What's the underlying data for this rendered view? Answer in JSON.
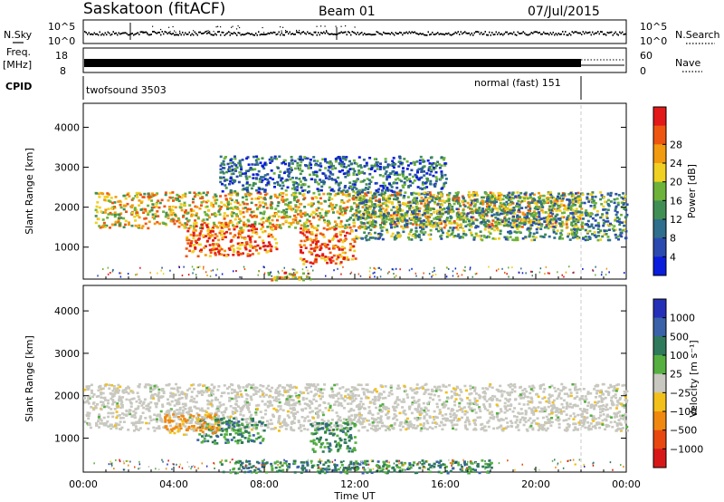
{
  "header": {
    "station": "Saskatoon (fitACF)",
    "beam": "Beam 01",
    "date": "07/Jul/2015"
  },
  "strips": {
    "nsky_label": "N.Sky",
    "nsky_ticks": [
      "10^5",
      "10^0"
    ],
    "nsearch_label": "N.Search",
    "nsearch_ticks": [
      "10^5",
      "10^0"
    ],
    "freq_label": "Freq.",
    "freq_unit": "[MHz]",
    "freq_ticks": [
      "18",
      "8"
    ],
    "nave_label": "Nave",
    "nave_ticks": [
      "60",
      "0"
    ],
    "cpid_label": "CPID",
    "cpid_modes": [
      {
        "text": "twofsound 3503",
        "start_hour": 0
      },
      {
        "text": "normal (fast) 151",
        "start_hour": 22
      }
    ]
  },
  "chart_data": [
    {
      "type": "heatmap",
      "panel": "power",
      "ylabel": "Slant Range [km]",
      "yticks": [
        "1000",
        "2000",
        "3000",
        "4000"
      ],
      "ylim": [
        200,
        4600
      ],
      "xlim": [
        0,
        24
      ],
      "colorbar_label": "Power [dB]",
      "colorbar_ticks": [
        "4",
        "8",
        "12",
        "16",
        "20",
        "24",
        "28"
      ],
      "colors": [
        "#0a1cdc",
        "#2a4ab0",
        "#2f6e8c",
        "#3f8f54",
        "#6db33a",
        "#f0d020",
        "#f29a10",
        "#ee5510",
        "#e31818"
      ],
      "regions": [
        {
          "hours": [
            0.5,
            22
          ],
          "range_km": [
            1500,
            2400
          ],
          "level_db": 18
        },
        {
          "hours": [
            4.5,
            8.5
          ],
          "range_km": [
            800,
            1600
          ],
          "level_db": 27
        },
        {
          "hours": [
            9.5,
            12
          ],
          "range_km": [
            600,
            1500
          ],
          "level_db": 26
        },
        {
          "hours": [
            8,
            10
          ],
          "range_km": [
            200,
            400
          ],
          "level_db": 24
        },
        {
          "hours": [
            12,
            24
          ],
          "range_km": [
            1200,
            2400
          ],
          "level_db": 14
        },
        {
          "hours": [
            6,
            16
          ],
          "range_km": [
            2400,
            3300
          ],
          "level_db": 10
        }
      ]
    },
    {
      "type": "heatmap",
      "panel": "velocity",
      "ylabel": "Slant Range [km]",
      "yticks": [
        "1000",
        "2000",
        "3000",
        "4000"
      ],
      "ylim": [
        200,
        4600
      ],
      "xlim": [
        0,
        24
      ],
      "xticks": [
        "00:00",
        "04:00",
        "08:00",
        "12:00",
        "16:00",
        "20:00",
        "00:00"
      ],
      "xlabel": "Time UT",
      "colorbar_label": "Velocity [m s⁻¹]",
      "colorbar_ticks": [
        "1000",
        "500",
        "100",
        "25",
        "−25",
        "−100",
        "−500",
        "−1000"
      ],
      "colors": [
        "#2530b8",
        "#3a62a8",
        "#2f7a5a",
        "#55b040",
        "#c8c8c0",
        "#f2c018",
        "#f08810",
        "#e84810",
        "#d81818"
      ],
      "regions": [
        {
          "hours": [
            0,
            24
          ],
          "range_km": [
            1200,
            2300
          ],
          "velocity_ms": 0
        },
        {
          "hours": [
            5,
            8
          ],
          "range_km": [
            900,
            1500
          ],
          "velocity_ms": 300
        },
        {
          "hours": [
            3.5,
            6
          ],
          "range_km": [
            1100,
            1600
          ],
          "velocity_ms": -150
        },
        {
          "hours": [
            10,
            12
          ],
          "range_km": [
            700,
            1400
          ],
          "velocity_ms": 300
        },
        {
          "hours": [
            6,
            18
          ],
          "range_km": [
            200,
            500
          ],
          "velocity_ms": 80
        }
      ]
    }
  ]
}
